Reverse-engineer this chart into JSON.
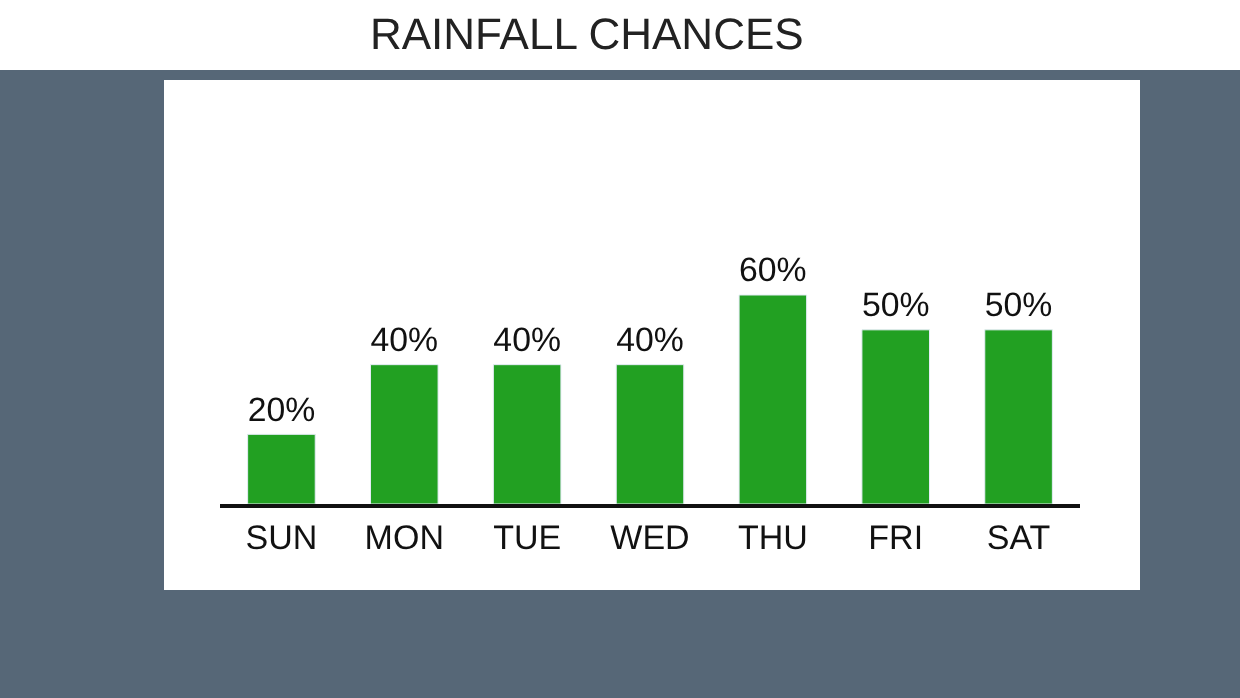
{
  "chart_data": {
    "type": "bar",
    "title": "RAINFALL CHANCES",
    "categories": [
      "SUN",
      "MON",
      "TUE",
      "WED",
      "THU",
      "FRI",
      "SAT"
    ],
    "values": [
      20,
      40,
      40,
      40,
      60,
      50,
      50
    ],
    "value_labels": [
      "20%",
      "40%",
      "40%",
      "40%",
      "60%",
      "50%",
      "50%"
    ],
    "color": "#22a022"
  }
}
